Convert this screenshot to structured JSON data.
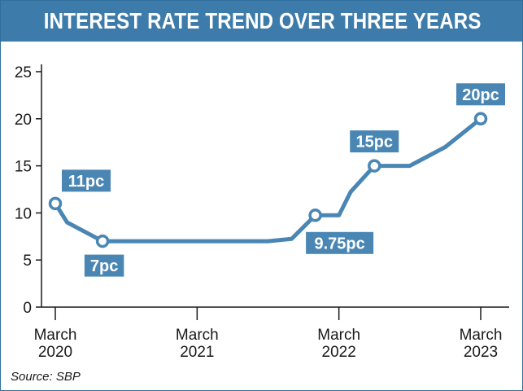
{
  "title": "INTEREST RATE TREND OVER THREE YEARS",
  "source": "Source: SBP",
  "colors": {
    "accent": "#3d7caa",
    "line": "#4a86b4",
    "marker_fill": "#ffffff",
    "label_bg": "#4a86b4",
    "axis": "#1a1a1a"
  },
  "chart_data": {
    "type": "line",
    "title": "INTEREST RATE TREND OVER THREE YEARS",
    "xlabel": "",
    "ylabel": "",
    "ylim": [
      0,
      25
    ],
    "yticks": [
      0,
      5,
      10,
      15,
      20,
      25
    ],
    "xlim": [
      "2020-03",
      "2023-03"
    ],
    "xticks": [
      {
        "x": "2020-03",
        "line1": "March",
        "line2": "2020"
      },
      {
        "x": "2021-03",
        "line1": "March",
        "line2": "2021"
      },
      {
        "x": "2022-03",
        "line1": "March",
        "line2": "2022"
      },
      {
        "x": "2023-03",
        "line1": "March",
        "line2": "2023"
      }
    ],
    "grid": false,
    "series": [
      {
        "points": [
          {
            "x": "2020-03",
            "y": 11
          },
          {
            "x": "2020-04",
            "y": 9
          },
          {
            "x": "2020-07",
            "y": 7
          },
          {
            "x": "2021-09",
            "y": 7
          },
          {
            "x": "2021-11",
            "y": 7.25
          },
          {
            "x": "2022-01",
            "y": 9.75
          },
          {
            "x": "2022-03",
            "y": 9.75
          },
          {
            "x": "2022-04",
            "y": 12.25
          },
          {
            "x": "2022-06",
            "y": 15
          },
          {
            "x": "2022-09",
            "y": 15
          },
          {
            "x": "2022-12",
            "y": 17
          },
          {
            "x": "2023-03",
            "y": 20
          }
        ]
      }
    ],
    "annotations": [
      {
        "x": "2020-03",
        "y": 11,
        "text": "11pc",
        "position": "above-right"
      },
      {
        "x": "2020-07",
        "y": 7,
        "text": "7pc",
        "position": "below"
      },
      {
        "x": "2022-01",
        "y": 9.75,
        "text": "9.75pc",
        "position": "below-right"
      },
      {
        "x": "2022-06",
        "y": 15,
        "text": "15pc",
        "position": "above"
      },
      {
        "x": "2023-03",
        "y": 20,
        "text": "20pc",
        "position": "above"
      }
    ]
  }
}
